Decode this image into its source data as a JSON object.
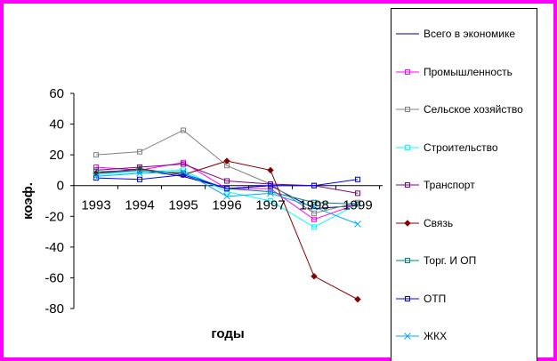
{
  "chart_data": {
    "type": "line",
    "title": "",
    "xlabel": "годы",
    "ylabel": "коэф.",
    "categories": [
      "1993",
      "1994",
      "1995",
      "1996",
      "1997",
      "1998",
      "1999"
    ],
    "ylim": [
      -80,
      60
    ],
    "yticks": [
      -80,
      -60,
      -40,
      -20,
      0,
      20,
      40,
      60
    ],
    "legend_position": "right",
    "series": [
      {
        "name": "Всего в экономике",
        "color": "#000080",
        "marker": "none",
        "values": [
          8,
          10,
          6,
          -2,
          0,
          -15,
          -13
        ]
      },
      {
        "name": "Промышленность",
        "color": "#ff00ff",
        "marker": "square",
        "values": [
          12,
          10,
          15,
          -2,
          -2,
          -22,
          -12
        ]
      },
      {
        "name": "Сельское хозяйство",
        "color": "#808080",
        "marker": "square",
        "values": [
          20,
          22,
          36,
          13,
          1,
          -18,
          -11
        ]
      },
      {
        "name": "Строительство",
        "color": "#00ffff",
        "marker": "square",
        "values": [
          7,
          9,
          10,
          -4,
          -10,
          -27,
          -12
        ]
      },
      {
        "name": "Транспорт",
        "color": "#800080",
        "marker": "square",
        "values": [
          10,
          12,
          14,
          3,
          1,
          0,
          -5
        ]
      },
      {
        "name": "Связь",
        "color": "#800000",
        "marker": "diamond",
        "values": [
          8,
          11,
          7,
          16,
          10,
          -59,
          -74
        ]
      },
      {
        "name": "Торг.  И ОП",
        "color": "#008080",
        "marker": "square",
        "values": [
          9,
          10,
          8,
          -2,
          -4,
          -11,
          -12
        ]
      },
      {
        "name": "ОТП",
        "color": "#0000ff",
        "marker": "square",
        "values": [
          5,
          4,
          7,
          -2,
          0,
          0,
          4
        ]
      },
      {
        "name": "ЖКХ",
        "color": "#00aaff",
        "marker": "cross",
        "values": [
          6,
          8,
          9,
          -7,
          -5,
          -14,
          -25
        ]
      }
    ]
  },
  "colors": {
    "frame": "#ff00ff",
    "background": "#ffffff"
  }
}
